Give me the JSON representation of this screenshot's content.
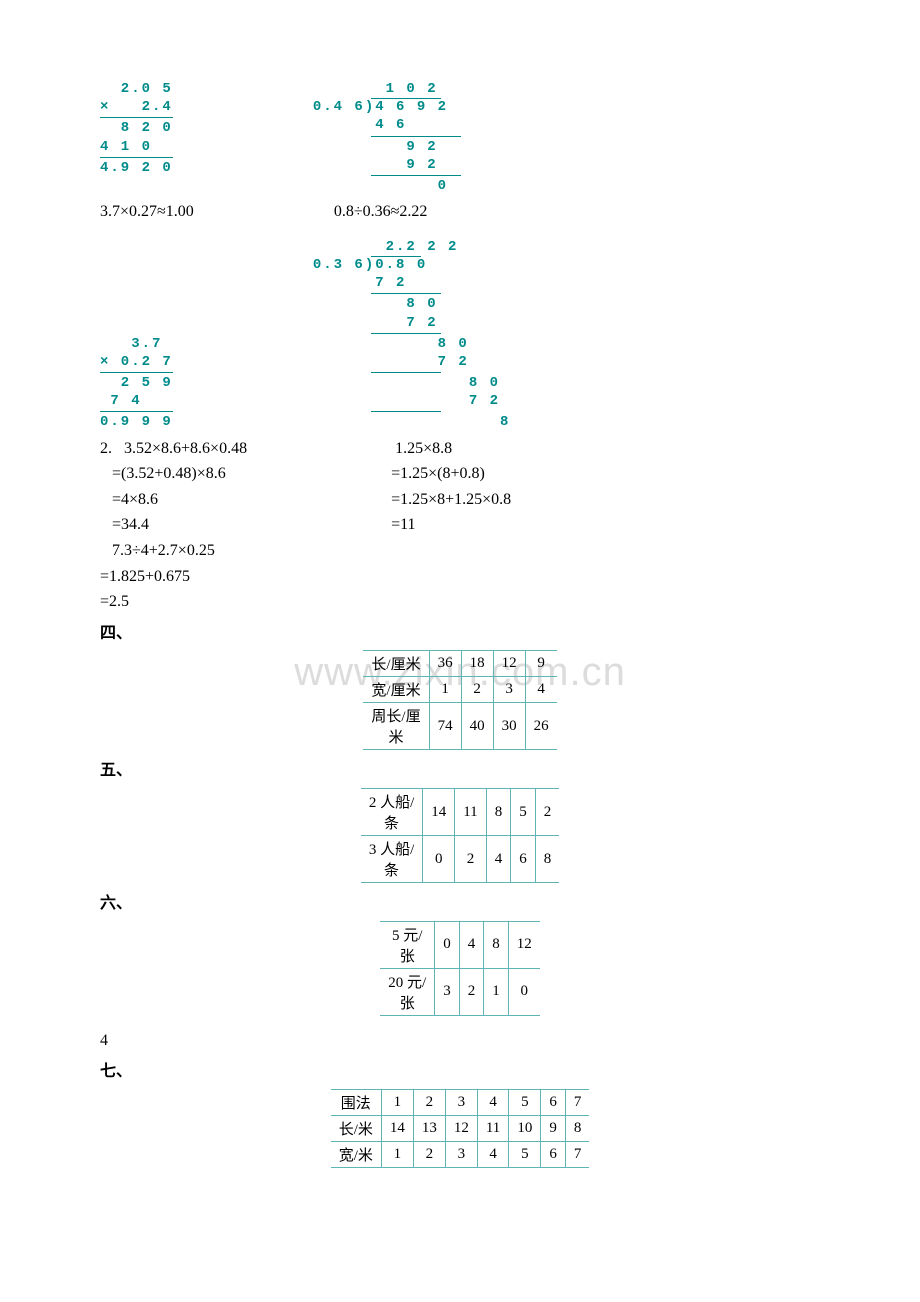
{
  "colors": {
    "teal": "#008b8b",
    "text": "#000000",
    "grid": "#5fb5b5",
    "watermark": "#dcdcdc",
    "bg": "#ffffff"
  },
  "watermark": "www.zixin.com.cn",
  "mult1": {
    "lines": [
      "  2.0 5",
      "×   2.4",
      "  8 2 0",
      "4 1 0",
      "4.9 2 0"
    ],
    "rules_after": [
      1,
      3
    ]
  },
  "div1": {
    "quotient": "      1 0 2",
    "divisor": "0.4 6",
    "dividend": "4 6 9 2",
    "steps": [
      "4 6",
      "   9 2",
      "   9 2",
      "      0"
    ],
    "rules_after": [
      0,
      2
    ]
  },
  "expr_row1_left": "3.7×0.27≈1.00",
  "expr_row1_right": "0.8÷0.36≈2.22",
  "mult2": {
    "lines": [
      "   3.7",
      "× 0.2 7",
      "  2 5 9",
      " 7 4",
      "0.9 9 9"
    ],
    "rules_after": [
      1,
      3
    ]
  },
  "div2": {
    "quotient": "      2.2 2 2",
    "divisor": "0.3 6",
    "dividend": "0.8 0",
    "steps": [
      "7 2",
      "   8 0",
      "   7 2",
      "      8 0",
      "      7 2",
      "         8 0",
      "         7 2",
      "            8"
    ],
    "rules_after": [
      0,
      2,
      4,
      6
    ]
  },
  "problem2_left": [
    "2.   3.52×8.6+8.6×0.48",
    "   =(3.52+0.48)×8.6",
    "   =4×8.6",
    "   =34.4",
    "   7.3÷4+2.7×0.25",
    "=1.825+0.675",
    "=2.5"
  ],
  "problem2_right": [
    "  1.25×8.8",
    " =1.25×(8+0.8)",
    " =1.25×8+1.25×0.8",
    " =11"
  ],
  "section4": {
    "label": "四、",
    "headers": [
      "长/厘米",
      "宽/厘米",
      "周长/厘米"
    ],
    "rows": [
      [
        "36",
        "18",
        "12",
        "9"
      ],
      [
        "1",
        "2",
        "3",
        "4"
      ],
      [
        "74",
        "40",
        "30",
        "26"
      ]
    ]
  },
  "section5": {
    "label": "五、",
    "headers": [
      "2 人船/条",
      "3 人船/条"
    ],
    "rows": [
      [
        "14",
        "11",
        "8",
        "5",
        "2"
      ],
      [
        "0",
        "2",
        "4",
        "6",
        "8"
      ]
    ]
  },
  "section6": {
    "label": "六、",
    "headers": [
      "5 元/张",
      "20 元/张"
    ],
    "rows": [
      [
        "0",
        "4",
        "8",
        "12"
      ],
      [
        "3",
        "2",
        "1",
        "0"
      ]
    ],
    "footer": "4"
  },
  "section7": {
    "label": "七、",
    "headers": [
      "围法",
      "长/米",
      "宽/米"
    ],
    "rows": [
      [
        "1",
        "2",
        "3",
        "4",
        "5",
        "6",
        "7"
      ],
      [
        "14",
        "13",
        "12",
        "11",
        "10",
        "9",
        "8"
      ],
      [
        "1",
        "2",
        "3",
        "4",
        "5",
        "6",
        "7"
      ]
    ]
  }
}
